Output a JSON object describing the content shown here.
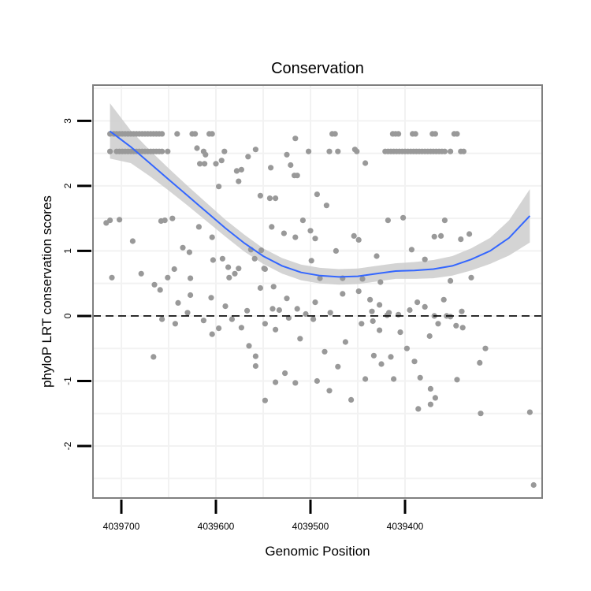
{
  "colors": {
    "points": "#999999",
    "smooth_line": "#3366ff",
    "ribbon": "#cccccc",
    "panel_border": "#7f7f7f",
    "grid": "#f2f2f2",
    "reference_line": "#000000"
  },
  "chart_data": {
    "type": "scatter",
    "title": "Conservation",
    "xlabel": "Genomic Position",
    "ylabel": "phyloP LRT conservation scores",
    "x_reversed": true,
    "xlim": [
      4039255,
      4039730
    ],
    "ylim": [
      -2.8,
      3.55
    ],
    "x_ticks": [
      4039700,
      4039600,
      4039500,
      4039400
    ],
    "x_tick_labels": [
      "4039700",
      "4039600",
      "4039500",
      "4039400"
    ],
    "y_ticks": [
      -2,
      -1,
      0,
      1,
      2,
      3
    ],
    "y_tick_labels": [
      "-2",
      "-1",
      "0",
      "1",
      "2",
      "3"
    ],
    "grid": true,
    "reference_line": {
      "y": 0,
      "style": "dashed"
    },
    "smooth": {
      "method": "loess",
      "x": [
        4039712,
        4039690,
        4039670,
        4039650,
        4039630,
        4039610,
        4039590,
        4039570,
        4039550,
        4039530,
        4039510,
        4039490,
        4039470,
        4039450,
        4039430,
        4039410,
        4039390,
        4039370,
        4039350,
        4039330,
        4039310,
        4039290,
        4039268
      ],
      "y": [
        2.84,
        2.6,
        2.35,
        2.1,
        1.85,
        1.6,
        1.35,
        1.12,
        0.92,
        0.77,
        0.67,
        0.62,
        0.6,
        0.61,
        0.65,
        0.69,
        0.7,
        0.72,
        0.77,
        0.87,
        1.0,
        1.2,
        1.54
      ],
      "upper": [
        3.27,
        2.85,
        2.55,
        2.27,
        2.0,
        1.74,
        1.48,
        1.25,
        1.04,
        0.89,
        0.79,
        0.74,
        0.72,
        0.73,
        0.77,
        0.81,
        0.83,
        0.86,
        0.92,
        1.04,
        1.2,
        1.47,
        1.95
      ],
      "lower": [
        2.42,
        2.35,
        2.15,
        1.93,
        1.7,
        1.46,
        1.22,
        0.99,
        0.8,
        0.65,
        0.55,
        0.5,
        0.48,
        0.49,
        0.53,
        0.57,
        0.57,
        0.58,
        0.62,
        0.7,
        0.8,
        0.93,
        1.13
      ]
    },
    "points": [
      [
        4039712,
        2.8
      ],
      [
        4039712,
        2.53
      ],
      [
        4039708,
        2.8
      ],
      [
        4039705,
        2.8
      ],
      [
        4039702,
        2.8
      ],
      [
        4039699,
        2.8
      ],
      [
        4039696,
        2.8
      ],
      [
        4039693,
        2.8
      ],
      [
        4039690,
        2.8
      ],
      [
        4039687,
        2.8
      ],
      [
        4039684,
        2.8
      ],
      [
        4039681,
        2.8
      ],
      [
        4039678,
        2.8
      ],
      [
        4039675,
        2.8
      ],
      [
        4039672,
        2.8
      ],
      [
        4039669,
        2.8
      ],
      [
        4039666,
        2.8
      ],
      [
        4039663,
        2.8
      ],
      [
        4039660,
        2.8
      ],
      [
        4039657,
        2.8
      ],
      [
        4039641,
        2.8
      ],
      [
        4039625,
        2.8
      ],
      [
        4039622,
        2.8
      ],
      [
        4039607,
        2.8
      ],
      [
        4039604,
        2.8
      ],
      [
        4039705,
        2.53
      ],
      [
        4039702,
        2.53
      ],
      [
        4039699,
        2.53
      ],
      [
        4039696,
        2.53
      ],
      [
        4039693,
        2.53
      ],
      [
        4039690,
        2.53
      ],
      [
        4039687,
        2.53
      ],
      [
        4039684,
        2.53
      ],
      [
        4039681,
        2.53
      ],
      [
        4039678,
        2.53
      ],
      [
        4039675,
        2.53
      ],
      [
        4039672,
        2.53
      ],
      [
        4039669,
        2.53
      ],
      [
        4039666,
        2.53
      ],
      [
        4039663,
        2.53
      ],
      [
        4039660,
        2.53
      ],
      [
        4039657,
        2.53
      ],
      [
        4039651,
        2.53
      ],
      [
        4039620,
        2.58
      ],
      [
        4039613,
        2.53
      ],
      [
        4039611,
        2.48
      ],
      [
        4039558,
        2.56
      ],
      [
        4039525,
        2.48
      ],
      [
        4039516,
        2.73
      ],
      [
        4039502,
        2.53
      ],
      [
        4039480,
        2.53
      ],
      [
        4039477,
        2.8
      ],
      [
        4039474,
        2.8
      ],
      [
        4039471,
        2.53
      ],
      [
        4039453,
        2.56
      ],
      [
        4039451,
        2.53
      ],
      [
        4039442,
        2.35
      ],
      [
        4039413,
        2.8
      ],
      [
        4039410,
        2.8
      ],
      [
        4039407,
        2.8
      ],
      [
        4039392,
        2.8
      ],
      [
        4039389,
        2.8
      ],
      [
        4039371,
        2.8
      ],
      [
        4039368,
        2.8
      ],
      [
        4039348,
        2.8
      ],
      [
        4039345,
        2.8
      ],
      [
        4039421,
        2.53
      ],
      [
        4039418,
        2.53
      ],
      [
        4039415,
        2.53
      ],
      [
        4039412,
        2.53
      ],
      [
        4039409,
        2.53
      ],
      [
        4039406,
        2.53
      ],
      [
        4039403,
        2.53
      ],
      [
        4039400,
        2.53
      ],
      [
        4039397,
        2.53
      ],
      [
        4039394,
        2.53
      ],
      [
        4039391,
        2.53
      ],
      [
        4039388,
        2.53
      ],
      [
        4039385,
        2.53
      ],
      [
        4039382,
        2.53
      ],
      [
        4039379,
        2.53
      ],
      [
        4039376,
        2.53
      ],
      [
        4039373,
        2.53
      ],
      [
        4039370,
        2.53
      ],
      [
        4039367,
        2.53
      ],
      [
        4039364,
        2.53
      ],
      [
        4039361,
        2.53
      ],
      [
        4039358,
        2.53
      ],
      [
        4039352,
        2.53
      ],
      [
        4039341,
        2.53
      ],
      [
        4039338,
        2.53
      ],
      [
        4039617,
        2.34
      ],
      [
        4039612,
        2.34
      ],
      [
        4039600,
        2.34
      ],
      [
        4039594,
        2.39
      ],
      [
        4039591,
        2.53
      ],
      [
        4039578,
        2.23
      ],
      [
        4039576,
        2.07
      ],
      [
        4039573,
        2.25
      ],
      [
        4039566,
        2.45
      ],
      [
        4039542,
        2.28
      ],
      [
        4039521,
        2.32
      ],
      [
        4039517,
        2.16
      ],
      [
        4039514,
        2.16
      ],
      [
        4039597,
        1.99
      ],
      [
        4039553,
        1.85
      ],
      [
        4039543,
        1.81
      ],
      [
        4039537,
        1.81
      ],
      [
        4039493,
        1.87
      ],
      [
        4039483,
        1.7
      ],
      [
        4039716,
        1.43
      ],
      [
        4039712,
        1.47
      ],
      [
        4039702,
        1.48
      ],
      [
        4039688,
        1.15
      ],
      [
        4039679,
        0.65
      ],
      [
        4039710,
        0.59
      ],
      [
        4039658,
        1.46
      ],
      [
        4039654,
        1.47
      ],
      [
        4039646,
        1.5
      ],
      [
        4039635,
        1.05
      ],
      [
        4039628,
        0.98
      ],
      [
        4039627,
        0.58
      ],
      [
        4039618,
        1.37
      ],
      [
        4039604,
        1.21
      ],
      [
        4039593,
        0.88
      ],
      [
        4039587,
        0.75
      ],
      [
        4039580,
        0.65
      ],
      [
        4039563,
        1.02
      ],
      [
        4039559,
        0.88
      ],
      [
        4039552,
        1.01
      ],
      [
        4039549,
        0.73
      ],
      [
        4039541,
        1.37
      ],
      [
        4039528,
        1.27
      ],
      [
        4039516,
        1.21
      ],
      [
        4039508,
        1.47
      ],
      [
        4039500,
        1.31
      ],
      [
        4039495,
        1.19
      ],
      [
        4039490,
        0.58
      ],
      [
        4039466,
        0.58
      ],
      [
        4039454,
        1.23
      ],
      [
        4039449,
        1.17
      ],
      [
        4039445,
        0.57
      ],
      [
        4039430,
        0.92
      ],
      [
        4039426,
        0.52
      ],
      [
        4039418,
        1.47
      ],
      [
        4039402,
        1.51
      ],
      [
        4039393,
        1.02
      ],
      [
        4039379,
        0.87
      ],
      [
        4039369,
        1.22
      ],
      [
        4039362,
        1.23
      ],
      [
        4039358,
        1.47
      ],
      [
        4039352,
        0.54
      ],
      [
        4039341,
        1.18
      ],
      [
        4039332,
        1.26
      ],
      [
        4039330,
        0.59
      ],
      [
        4039603,
        0.86
      ],
      [
        4039586,
        0.59
      ],
      [
        4039576,
        0.73
      ],
      [
        4039548,
        0.72
      ],
      [
        4039539,
        0.45
      ],
      [
        4039499,
        0.85
      ],
      [
        4039473,
        1.0
      ],
      [
        4039659,
        0.4
      ],
      [
        4039651,
        0.59
      ],
      [
        4039644,
        0.72
      ],
      [
        4039640,
        0.2
      ],
      [
        4039627,
        0.32
      ],
      [
        4039605,
        0.28
      ],
      [
        4039590,
        0.15
      ],
      [
        4039567,
        0.08
      ],
      [
        4039553,
        0.43
      ],
      [
        4039540,
        0.11
      ],
      [
        4039533,
        0.09
      ],
      [
        4039525,
        0.27
      ],
      [
        4039514,
        0.11
      ],
      [
        4039505,
        0.03
      ],
      [
        4039495,
        0.21
      ],
      [
        4039479,
        0.05
      ],
      [
        4039466,
        0.34
      ],
      [
        4039449,
        0.38
      ],
      [
        4039437,
        0.25
      ],
      [
        4039427,
        0.17
      ],
      [
        4039419,
        0.01
      ],
      [
        4039407,
        0.02
      ],
      [
        4039395,
        0.09
      ],
      [
        4039379,
        0.14
      ],
      [
        4039369,
        0.0
      ],
      [
        4039356,
        0.0
      ],
      [
        4039340,
        0.07
      ],
      [
        4039387,
        0.21
      ],
      [
        4039359,
        0.25
      ],
      [
        4039417,
        0.05
      ],
      [
        4039435,
        0.07
      ],
      [
        4039665,
        0.48
      ],
      [
        4039630,
        0.05
      ],
      [
        4039613,
        -0.07
      ],
      [
        4039604,
        -0.28
      ],
      [
        4039597,
        -0.19
      ],
      [
        4039583,
        -0.05
      ],
      [
        4039573,
        -0.18
      ],
      [
        4039565,
        -0.46
      ],
      [
        4039558,
        -0.62
      ],
      [
        4039548,
        -0.12
      ],
      [
        4039537,
        -0.21
      ],
      [
        4039523,
        -0.03
      ],
      [
        4039511,
        -0.35
      ],
      [
        4039497,
        -0.05
      ],
      [
        4039485,
        -0.55
      ],
      [
        4039471,
        -0.78
      ],
      [
        4039463,
        -0.4
      ],
      [
        4039446,
        -0.12
      ],
      [
        4039434,
        -0.08
      ],
      [
        4039427,
        -0.22
      ],
      [
        4039415,
        -0.63
      ],
      [
        4039405,
        -0.25
      ],
      [
        4039398,
        -0.5
      ],
      [
        4039374,
        -0.31
      ],
      [
        4039365,
        -0.12
      ],
      [
        4039352,
        -0.01
      ],
      [
        4039346,
        -0.15
      ],
      [
        4039339,
        -0.18
      ],
      [
        4039657,
        -0.05
      ],
      [
        4039643,
        -0.12
      ],
      [
        4039666,
        -0.63
      ],
      [
        4039558,
        -0.77
      ],
      [
        4039548,
        -1.3
      ],
      [
        4039537,
        -1.02
      ],
      [
        4039527,
        -0.88
      ],
      [
        4039516,
        -1.03
      ],
      [
        4039493,
        -1.0
      ],
      [
        4039480,
        -1.15
      ],
      [
        4039457,
        -1.29
      ],
      [
        4039442,
        -0.97
      ],
      [
        4039433,
        -0.61
      ],
      [
        4039425,
        -0.74
      ],
      [
        4039412,
        -0.97
      ],
      [
        4039386,
        -1.43
      ],
      [
        4039390,
        -0.7
      ],
      [
        4039384,
        -0.95
      ],
      [
        4039373,
        -1.12
      ],
      [
        4039368,
        -1.26
      ],
      [
        4039373,
        -1.36
      ],
      [
        4039345,
        -0.98
      ],
      [
        4039321,
        -0.72
      ],
      [
        4039315,
        -0.5
      ],
      [
        4039320,
        -1.5
      ],
      [
        4039268,
        -1.48
      ],
      [
        4039264,
        -2.6
      ]
    ]
  }
}
